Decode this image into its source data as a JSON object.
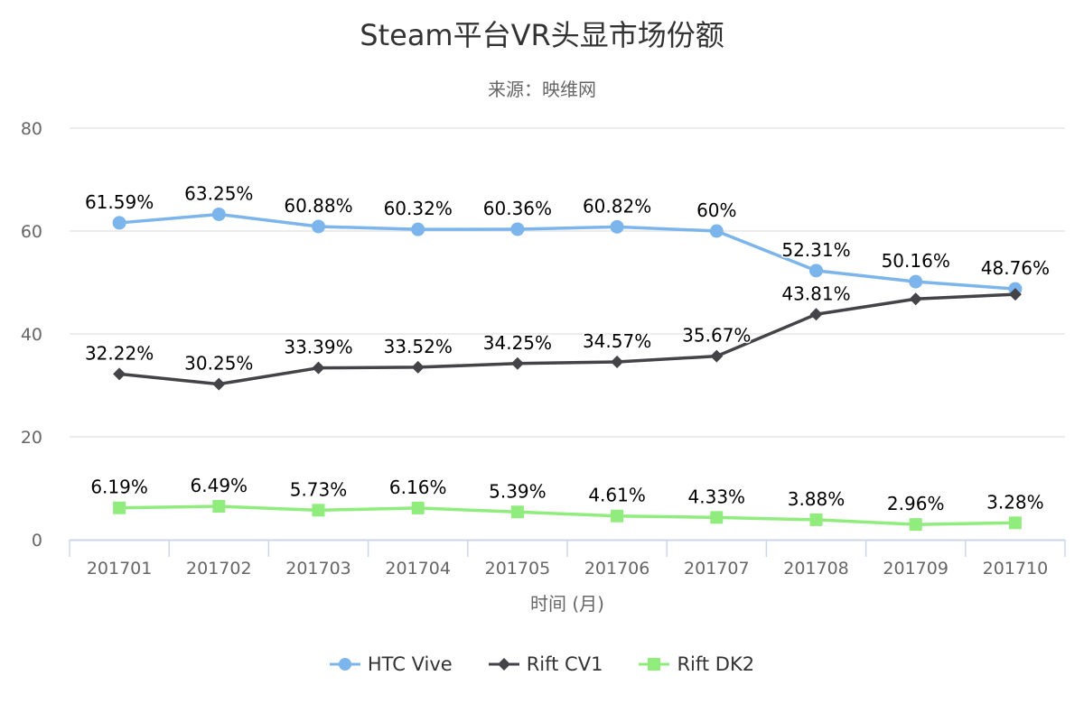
{
  "chart_data": {
    "type": "line",
    "title": "Steam平台VR头显市场份额",
    "subtitle": "来源：映维网",
    "xlabel": "时间 (月)",
    "ylabel": "",
    "ylim": [
      0,
      80
    ],
    "yticks": [
      "0",
      "20",
      "40",
      "60",
      "80"
    ],
    "grid": true,
    "legend_position": "bottom",
    "categories": [
      "201701",
      "201702",
      "201703",
      "201704",
      "201705",
      "201706",
      "201707",
      "201708",
      "201709",
      "201710"
    ],
    "series": [
      {
        "name": "HTC Vive",
        "color": "#7cb5ec",
        "marker": "circle",
        "values": [
          61.59,
          63.25,
          60.88,
          60.32,
          60.36,
          60.82,
          60,
          52.31,
          50.16,
          48.76
        ],
        "labels": [
          "61.59%",
          "63.25%",
          "60.88%",
          "60.32%",
          "60.36%",
          "60.82%",
          "60%",
          "52.31%",
          "50.16%",
          "48.76%"
        ]
      },
      {
        "name": "Rift CV1",
        "color": "#434348",
        "marker": "diamond",
        "values": [
          32.22,
          30.25,
          33.39,
          33.52,
          34.25,
          34.57,
          35.67,
          43.81,
          46.8,
          47.7
        ],
        "labels": [
          "32.22%",
          "30.25%",
          "33.39%",
          "33.52%",
          "34.25%",
          "34.57%",
          "35.67%",
          "43.81%",
          null,
          null
        ]
      },
      {
        "name": "Rift DK2",
        "color": "#90ed7d",
        "marker": "square",
        "values": [
          6.19,
          6.49,
          5.73,
          6.16,
          5.39,
          4.61,
          4.33,
          3.88,
          2.96,
          3.28
        ],
        "labels": [
          "6.19%",
          "6.49%",
          "5.73%",
          "6.16%",
          "5.39%",
          "4.61%",
          "4.33%",
          "3.88%",
          "2.96%",
          "3.28%"
        ]
      }
    ]
  }
}
